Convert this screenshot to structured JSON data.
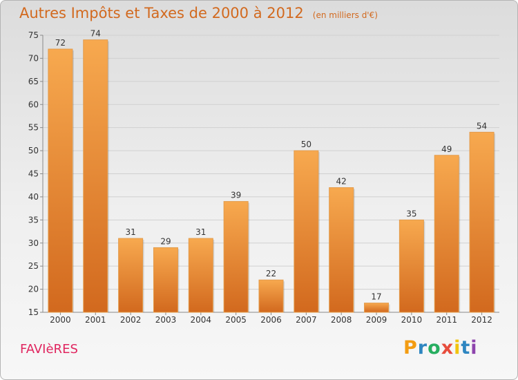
{
  "header": {
    "title": "Autres Impôts et Taxes de 2000 à 2012",
    "unit": "(en milliers d'€)"
  },
  "footer": {
    "commune": "FAVIèRES",
    "logo": {
      "letters": [
        "P",
        "r",
        "o",
        "x",
        "i",
        "t",
        "i"
      ],
      "colors": [
        "#f39c12",
        "#2e86c1",
        "#27ae60",
        "#e74c3c",
        "#f1c40f",
        "#2e86c1",
        "#8e44ad"
      ]
    }
  },
  "colors": {
    "bar_light": "#f7a94f",
    "bar_dark": "#d2691e",
    "title": "#d2691e",
    "commune": "#e0245e"
  },
  "chart_data": {
    "type": "bar",
    "title": "Autres Impôts et Taxes de 2000 à 2012",
    "subtitle": "(en milliers d'€)",
    "xlabel": "",
    "ylabel": "",
    "categories": [
      "2000",
      "2001",
      "2002",
      "2003",
      "2004",
      "2005",
      "2006",
      "2007",
      "2008",
      "2009",
      "2010",
      "2011",
      "2012"
    ],
    "values": [
      72,
      74,
      31,
      29,
      31,
      39,
      22,
      50,
      42,
      17,
      35,
      49,
      54
    ],
    "ylim": [
      15,
      75
    ],
    "yticks": [
      15,
      20,
      25,
      30,
      35,
      40,
      45,
      50,
      55,
      60,
      65,
      70,
      75
    ],
    "grid": true,
    "legend": "none"
  }
}
